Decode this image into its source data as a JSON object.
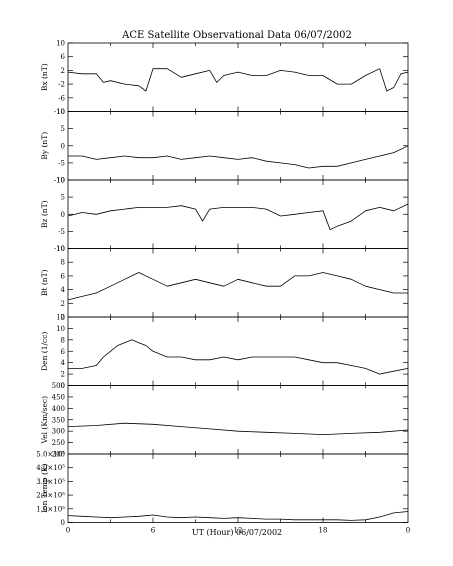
{
  "chart_data": {
    "type": "line",
    "title": "ACE Satellite Observational Data   06/07/2002",
    "xlabel": "UT (Hour)   06/07/2002",
    "x_ticks": [
      "0",
      "6",
      "12",
      "18",
      "0"
    ],
    "xlim": [
      0,
      24
    ],
    "series_color": "#000000",
    "panels": [
      {
        "name": "Bx (nT)",
        "ylim": [
          -10,
          10
        ],
        "yticks": [
          -10,
          -6,
          -2,
          2,
          6,
          10
        ],
        "x": [
          0,
          1,
          2,
          2.5,
          3,
          4,
          5,
          5.5,
          6,
          7,
          8,
          9,
          10,
          10.5,
          11,
          12,
          13,
          14,
          15,
          16,
          17,
          18,
          19,
          20,
          21,
          22,
          22.5,
          23,
          23.5,
          24
        ],
        "y": [
          1.5,
          1,
          1,
          -1.5,
          -1,
          -2,
          -2.5,
          -4,
          2.5,
          2.5,
          0,
          1,
          2,
          -1.5,
          0.5,
          1.5,
          0.5,
          0.5,
          2,
          1.5,
          0.5,
          0.5,
          -2,
          -2,
          0.5,
          2.5,
          -4,
          -3,
          1,
          1.5
        ]
      },
      {
        "name": "By (nT)",
        "ylim": [
          -10,
          10
        ],
        "yticks": [
          -10,
          -5,
          0,
          5,
          10
        ],
        "x": [
          0,
          1,
          2,
          3,
          4,
          5,
          6,
          7,
          8,
          9,
          10,
          11,
          12,
          13,
          14,
          15,
          16,
          17,
          18,
          19,
          20,
          21,
          22,
          23,
          24
        ],
        "y": [
          -3,
          -3,
          -4,
          -3.5,
          -3,
          -3.5,
          -3.5,
          -3,
          -4,
          -3.5,
          -3,
          -3.5,
          -4,
          -3.5,
          -4.5,
          -5,
          -5.5,
          -6.5,
          -6,
          -6,
          -5,
          -4,
          -3,
          -2,
          0
        ]
      },
      {
        "name": "Bz (nT)",
        "ylim": [
          -10,
          10
        ],
        "yticks": [
          -10,
          -5,
          0,
          5,
          10
        ],
        "x": [
          0,
          1,
          2,
          3,
          4,
          5,
          6,
          7,
          8,
          9,
          9.5,
          10,
          11,
          12,
          13,
          14,
          15,
          16,
          17,
          18,
          18.5,
          19,
          20,
          21,
          22,
          23,
          24
        ],
        "y": [
          -0.5,
          0.5,
          0,
          1,
          1.5,
          2,
          2,
          2,
          2.5,
          1.5,
          -2,
          1.5,
          2,
          2,
          2,
          1.5,
          -0.5,
          0,
          0.5,
          1,
          -4.5,
          -3.5,
          -2,
          1,
          2,
          1,
          3
        ]
      },
      {
        "name": "Bt (nT)",
        "ylim": [
          0,
          10
        ],
        "yticks": [
          0,
          2,
          4,
          6,
          8,
          10
        ],
        "x": [
          0,
          1,
          2,
          3,
          4,
          5,
          6,
          7,
          8,
          9,
          10,
          11,
          12,
          13,
          14,
          15,
          16,
          17,
          18,
          19,
          20,
          21,
          22,
          23,
          24
        ],
        "y": [
          2.5,
          3,
          3.5,
          4.5,
          5.5,
          6.5,
          5.5,
          4.5,
          5,
          5.5,
          5,
          4.5,
          5.5,
          5,
          4.5,
          4.5,
          6,
          6,
          6.5,
          6,
          5.5,
          4.5,
          4,
          3.5,
          3.5
        ]
      },
      {
        "name": "Den (1/cc)",
        "ylim": [
          0,
          12
        ],
        "yticks": [
          0,
          2,
          4,
          6,
          8,
          10,
          12
        ],
        "x": [
          0,
          1,
          2,
          2.5,
          3,
          3.5,
          4,
          4.5,
          5,
          5.5,
          6,
          7,
          8,
          9,
          10,
          11,
          12,
          13,
          14,
          15,
          16,
          17,
          18,
          19,
          20,
          21,
          22,
          23,
          24
        ],
        "y": [
          3,
          3,
          3.5,
          5,
          6,
          7,
          7.5,
          8,
          7.5,
          7,
          6,
          5,
          5,
          4.5,
          4.5,
          5,
          4.5,
          5,
          5,
          5,
          5,
          4.5,
          4,
          4,
          3.5,
          3,
          2,
          2.5,
          3
        ]
      },
      {
        "name": "Vel (Km/sec)",
        "ylim": [
          200,
          500
        ],
        "yticks": [
          200,
          250,
          300,
          350,
          400,
          450,
          500
        ],
        "x": [
          0,
          2,
          4,
          6,
          8,
          10,
          12,
          14,
          16,
          18,
          20,
          22,
          24
        ],
        "y": [
          320,
          325,
          335,
          330,
          320,
          310,
          300,
          295,
          290,
          285,
          290,
          295,
          305
        ]
      },
      {
        "name": "Ion Temp (K)",
        "ylim": [
          0,
          500000
        ],
        "yticks": [
          0,
          100000,
          200000,
          300000,
          400000,
          500000
        ],
        "ytick_labels": [
          "0",
          "1.0×10⁵",
          "2.0×10⁵",
          "3.0×10⁵",
          "4.0×10⁵",
          "5.0×10⁵"
        ],
        "x": [
          0,
          1,
          2,
          3,
          4,
          5,
          6,
          7,
          8,
          9,
          10,
          11,
          12,
          13,
          14,
          15,
          16,
          17,
          18,
          19,
          20,
          21,
          22,
          23,
          24
        ],
        "y": [
          50000,
          45000,
          40000,
          35000,
          40000,
          45000,
          55000,
          40000,
          35000,
          40000,
          35000,
          30000,
          35000,
          30000,
          25000,
          25000,
          20000,
          20000,
          20000,
          20000,
          15000,
          20000,
          40000,
          70000,
          80000
        ]
      }
    ]
  }
}
